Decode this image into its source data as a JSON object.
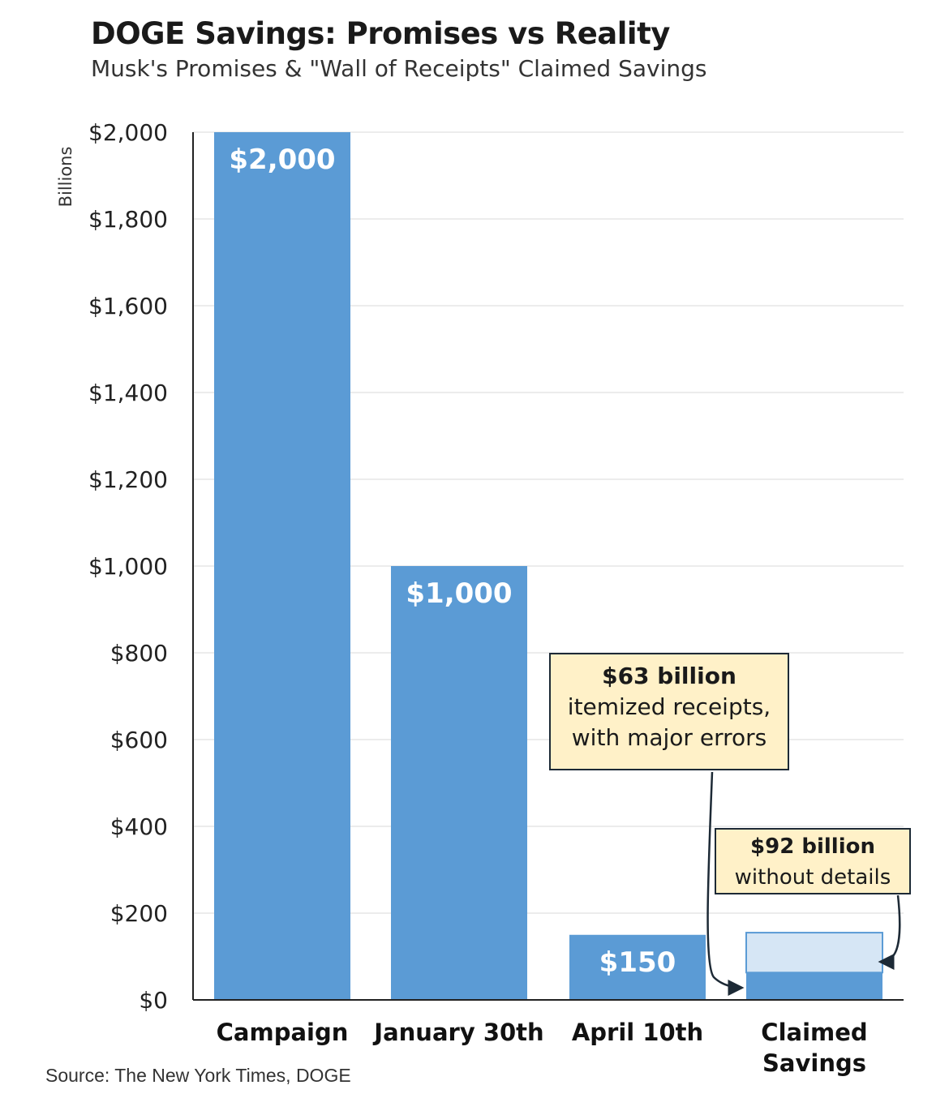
{
  "chart_data": {
    "type": "bar",
    "title": "DOGE Savings: Promises vs Reality",
    "subtitle": "Musk's Promises & \"Wall of Receipts\" Claimed Savings",
    "ylabel": "Billions",
    "ylim": [
      0,
      2000
    ],
    "yticks": [
      0,
      200,
      400,
      600,
      800,
      1000,
      1200,
      1400,
      1600,
      1800,
      2000
    ],
    "ytick_labels": [
      "$0",
      "$200",
      "$400",
      "$600",
      "$800",
      "$1,000",
      "$1,200",
      "$1,400",
      "$1,600",
      "$1,800",
      "$2,000"
    ],
    "categories": [
      "Campaign",
      "January 30th",
      "April 10th",
      "Claimed Savings"
    ],
    "values": [
      2000,
      1000,
      150,
      null
    ],
    "data_labels": [
      "$2,000",
      "$1,000",
      "$150",
      ""
    ],
    "stacked_last": [
      {
        "value": 63,
        "color": "#5b9bd5"
      },
      {
        "value": 92,
        "color": "#d6e6f5"
      }
    ],
    "grid": true,
    "bar_color": "#5b9bd5",
    "light_color": "#d6e6f5",
    "annotations": [
      {
        "head": "$63 billion",
        "body": "itemized receipts, with major errors"
      },
      {
        "head": "$92 billion",
        "body": "without details"
      }
    ],
    "source": "Source: The New York Times, DOGE"
  }
}
